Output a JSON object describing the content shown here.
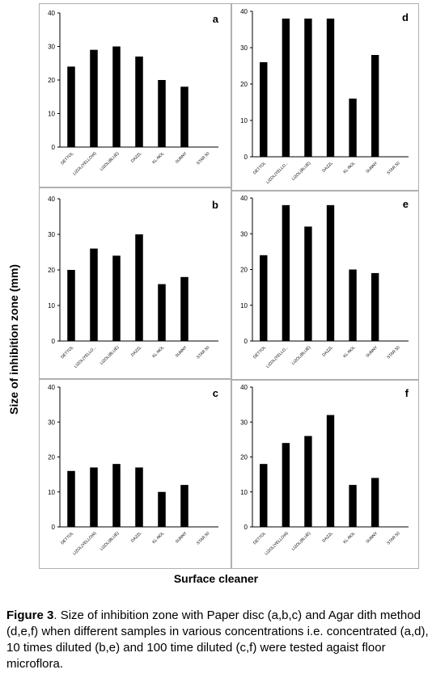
{
  "figure": {
    "y_axis_label": "Size of inhibition zone (mm)",
    "x_axis_label": "Surface cleaner",
    "caption_label": "Figure 3",
    "caption_text": ".  Size of inhibition zone with Paper disc (a,b,c) and Agar dith method (d,e,f) when different samples in various concentrations i.e. concentrated (a,d), 10 times diluted (b,e) and 100 time diluted (c,f) were tested agaist floor microflora."
  },
  "chart_data": [
    {
      "type": "bar",
      "panel": "a",
      "categories": [
        "DETTOL",
        "LIZOL(YELLOW)",
        "LIZOL(BLUE)",
        "DAZZL",
        "KL-NOL",
        "SUNNY",
        "STAR 50"
      ],
      "values": [
        24,
        29,
        30,
        27,
        20,
        18,
        0
      ],
      "ylim": [
        0,
        40
      ],
      "yticks": [
        0,
        10,
        20,
        30,
        40
      ]
    },
    {
      "type": "bar",
      "panel": "d",
      "categories": [
        "DETTOL",
        "LIZOL(YELLO...",
        "LIZOL(BLUE)",
        "DAZZL",
        "KL-NOL",
        "SUNNY",
        "STAR 50"
      ],
      "values": [
        26,
        38,
        38,
        38,
        16,
        28,
        0
      ],
      "ylim": [
        0,
        40
      ],
      "yticks": [
        0,
        10,
        20,
        30,
        40
      ]
    },
    {
      "type": "bar",
      "panel": "b",
      "categories": [
        "DETTOL",
        "LIZOL(YELLO...",
        "LIZOL(BLUE)",
        "DAZZL",
        "KL-NOL",
        "SUNNY",
        "STAR 50"
      ],
      "values": [
        20,
        26,
        24,
        30,
        16,
        18,
        0
      ],
      "ylim": [
        0,
        40
      ],
      "yticks": [
        0,
        10,
        20,
        30,
        40
      ]
    },
    {
      "type": "bar",
      "panel": "e",
      "categories": [
        "DETTOL",
        "LIZOL(YELLO...",
        "LIZOL(BLUE)",
        "DAZZL",
        "KL-NOL",
        "SUNNY",
        "STAR 50"
      ],
      "values": [
        24,
        38,
        32,
        38,
        20,
        19,
        0
      ],
      "ylim": [
        0,
        40
      ],
      "yticks": [
        0,
        10,
        20,
        30,
        40
      ]
    },
    {
      "type": "bar",
      "panel": "c",
      "categories": [
        "DETTOL",
        "LIZOL(YELLOW)",
        "LIZOL(BLUE)",
        "DAZZL",
        "KL-NOL",
        "SUNNY",
        "STAR 50"
      ],
      "values": [
        16,
        17,
        18,
        17,
        10,
        12,
        0
      ],
      "ylim": [
        0,
        40
      ],
      "yticks": [
        0,
        10,
        20,
        30,
        40
      ]
    },
    {
      "type": "bar",
      "panel": "f",
      "categories": [
        "DETTOL",
        "LIZOL(YELLOW)",
        "LIZOL(BLUE)",
        "DAZZL",
        "KL-NOL",
        "SUNNY",
        "STAR 50"
      ],
      "values": [
        18,
        24,
        26,
        32,
        12,
        14,
        0
      ],
      "ylim": [
        0,
        40
      ],
      "yticks": [
        0,
        10,
        20,
        30,
        40
      ]
    }
  ]
}
